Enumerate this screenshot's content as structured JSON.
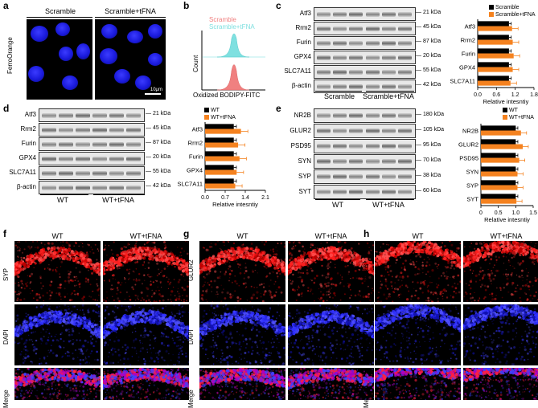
{
  "panel_a": {
    "letter": "a",
    "headers": [
      "Scramble",
      "Scramble+tFNA"
    ],
    "side_label": "FerroOrange",
    "scalebar": "10μm"
  },
  "panel_b": {
    "letter": "b",
    "legend": [
      "Scramble",
      "Scramble+tFNA"
    ],
    "ylabel": "Count",
    "xlabel": "Oxidized BODIPY-FITC",
    "colors": {
      "scramble": "#f08080",
      "tfna": "#7fe0e0"
    }
  },
  "panel_c": {
    "letter": "c",
    "proteins": [
      "Atf3",
      "Rrm2",
      "Furin",
      "GPX4",
      "SLC7A11",
      "β-actin"
    ],
    "kda": [
      "21 kDa",
      "45 kDa",
      "87 kDa",
      "20 kDa",
      "55 kDa",
      "42 kDa"
    ],
    "groups": [
      "Scramble",
      "Scramble+tFNA"
    ]
  },
  "panel_d": {
    "letter": "d",
    "proteins": [
      "Atf3",
      "Rrm2",
      "Furin",
      "GPX4",
      "SLC7A11",
      "β-actin"
    ],
    "kda": [
      "21 kDa",
      "45 kDa",
      "87 kDa",
      "20 kDa",
      "55 kDa",
      "42 kDa"
    ],
    "groups": [
      "WT",
      "WT+tFNA"
    ]
  },
  "panel_e": {
    "letter": "e",
    "proteins": [
      "NR2B",
      "GLUR2",
      "PSD95",
      "SYN",
      "SYP",
      "SYT"
    ],
    "kda": [
      "180 kDa",
      "105 kDa",
      "95 kDa",
      "70 kDa",
      "38 kDa",
      "60 kDa"
    ],
    "groups": [
      "WT",
      "WT+tFNA"
    ]
  },
  "panel_f": {
    "letter": "f",
    "headers": [
      "WT",
      "WT+tFNA"
    ],
    "rows": [
      "SYP",
      "DAPI",
      "Merge"
    ]
  },
  "panel_g": {
    "letter": "g",
    "headers": [
      "WT",
      "WT+tFNA"
    ],
    "rows": [
      "GLUR2",
      "DAPI",
      "Merge"
    ]
  },
  "panel_h": {
    "letter": "h",
    "headers": [
      "WT",
      "WT+tFNA"
    ],
    "rows": [
      "NR2B",
      "DAPI",
      "Merge"
    ]
  },
  "chart_data": [
    {
      "type": "bar",
      "orientation": "horizontal",
      "categories": [
        "Atf3",
        "Rrm2",
        "Furin",
        "GPX4",
        "SLC7A11"
      ],
      "series": [
        {
          "name": "Scramble",
          "values": [
            1.0,
            1.0,
            1.0,
            1.0,
            1.0
          ],
          "color": "#000000"
        },
        {
          "name": "Scramble+tFNA",
          "values": [
            1.1,
            1.12,
            1.15,
            1.12,
            1.05
          ],
          "color": "#f5821f"
        }
      ],
      "xticks": [
        "0.0",
        "0.6",
        "1.2",
        "1.8"
      ],
      "xlim": [
        0,
        1.8
      ],
      "xlabel": "Relative intesntiy",
      "legend": "top-right"
    },
    {
      "type": "bar",
      "orientation": "horizontal",
      "categories": [
        "Atf3",
        "Rrm2",
        "Furin",
        "GPX4",
        "SLC7A11"
      ],
      "series": [
        {
          "name": "WT",
          "values": [
            1.0,
            1.0,
            1.0,
            1.0,
            1.0
          ],
          "color": "#000000"
        },
        {
          "name": "WT+tFNA",
          "values": [
            1.25,
            1.15,
            1.2,
            1.1,
            1.05
          ],
          "color": "#f5821f"
        }
      ],
      "xticks": [
        "0.0",
        "0.7",
        "1.4",
        "2.1"
      ],
      "xlim": [
        0,
        2.1
      ],
      "xlabel": "Relative intesntiy",
      "legend": "top-right"
    },
    {
      "type": "bar",
      "orientation": "horizontal",
      "categories": [
        "NR2B",
        "GLUR2",
        "PSD95",
        "SYN",
        "SYP",
        "SYT"
      ],
      "series": [
        {
          "name": "WT",
          "values": [
            1.0,
            1.0,
            1.0,
            1.0,
            1.0,
            1.0
          ],
          "color": "#000000"
        },
        {
          "name": "WT+tFNA",
          "values": [
            1.15,
            1.2,
            1.1,
            1.05,
            1.05,
            1.02
          ],
          "color": "#f5821f"
        }
      ],
      "xticks": [
        "0",
        "0.5",
        "1.0",
        "1.5"
      ],
      "xlim": [
        0,
        1.5
      ],
      "xlabel": "Relative intesntiy",
      "legend": "top-right"
    }
  ]
}
